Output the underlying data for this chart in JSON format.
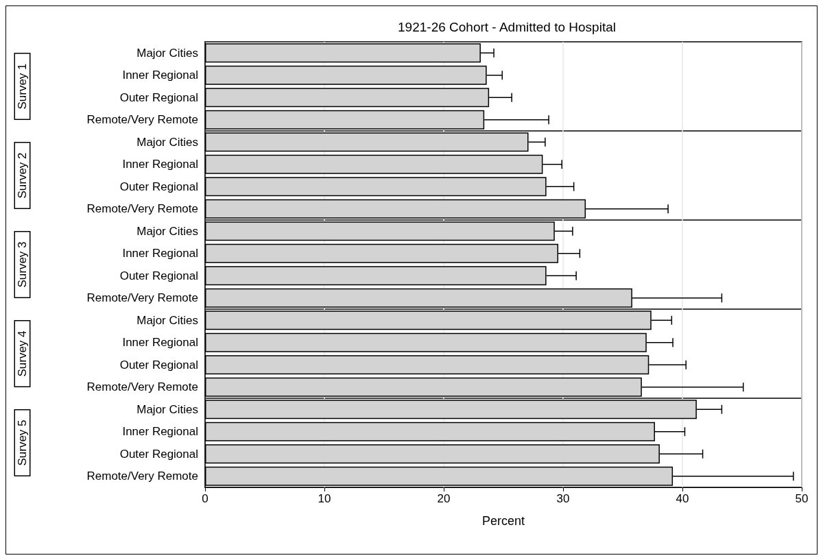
{
  "chart_data": [
    {
      "type": "bar",
      "orientation": "horizontal",
      "title": "1921-26 Cohort - Admitted to Hospital",
      "ylabel": "Survey 1",
      "categories": [
        "Major Cities",
        "Inner Regional",
        "Outer Regional",
        "Remote/Very Remote"
      ],
      "color": "#d3d3d3",
      "values": [
        23.1,
        23.6,
        23.8,
        23.4
      ],
      "errors": [
        [
          23.1,
          24.2
        ],
        [
          23.6,
          24.9
        ],
        [
          23.8,
          25.7
        ],
        [
          23.4,
          28.8
        ]
      ],
      "xlim": [
        0,
        50
      ],
      "xticks": [
        0,
        10,
        20,
        30,
        40,
        50
      ],
      "grid": "x",
      "tick_labels": "y"
    },
    {
      "type": "bar",
      "orientation": "horizontal",
      "ylabel": "Survey 2",
      "categories": [
        "Major Cities",
        "Inner Regional",
        "Outer Regional",
        "Remote/Very Remote"
      ],
      "color": "#d3d3d3",
      "values": [
        27.1,
        28.3,
        28.6,
        31.9
      ],
      "errors": [
        [
          27.1,
          28.5
        ],
        [
          28.3,
          29.9
        ],
        [
          28.6,
          30.9
        ],
        [
          31.9,
          38.8
        ]
      ],
      "xlim": [
        0,
        50
      ],
      "xticks": [
        0,
        10,
        20,
        30,
        40,
        50
      ],
      "grid": "x",
      "tick_labels": "y"
    },
    {
      "type": "bar",
      "orientation": "horizontal",
      "ylabel": "Survey 3",
      "categories": [
        "Major Cities",
        "Inner Regional",
        "Outer Regional",
        "Remote/Very Remote"
      ],
      "color": "#d3d3d3",
      "values": [
        29.3,
        29.6,
        28.6,
        35.8
      ],
      "errors": [
        [
          29.3,
          30.8
        ],
        [
          29.6,
          31.4
        ],
        [
          28.6,
          31.1
        ],
        [
          35.8,
          43.3
        ]
      ],
      "xlim": [
        0,
        50
      ],
      "xticks": [
        0,
        10,
        20,
        30,
        40,
        50
      ],
      "grid": "x",
      "tick_labels": "y"
    },
    {
      "type": "bar",
      "orientation": "horizontal",
      "ylabel": "Survey 4",
      "categories": [
        "Major Cities",
        "Inner Regional",
        "Outer Regional",
        "Remote/Very Remote"
      ],
      "color": "#d3d3d3",
      "values": [
        37.4,
        37.0,
        37.2,
        36.6
      ],
      "errors": [
        [
          37.4,
          39.1
        ],
        [
          37.0,
          39.2
        ],
        [
          37.2,
          40.3
        ],
        [
          36.6,
          45.1
        ]
      ],
      "xlim": [
        0,
        50
      ],
      "xticks": [
        0,
        10,
        20,
        30,
        40,
        50
      ],
      "grid": "x",
      "tick_labels": "y"
    },
    {
      "type": "bar",
      "orientation": "horizontal",
      "ylabel": "Survey 5",
      "xlabel": "Percent",
      "categories": [
        "Major Cities",
        "Inner Regional",
        "Outer Regional",
        "Remote/Very Remote"
      ],
      "color": "#d3d3d3",
      "values": [
        41.2,
        37.7,
        38.1,
        39.2
      ],
      "errors": [
        [
          41.2,
          43.3
        ],
        [
          37.7,
          40.2
        ],
        [
          38.1,
          41.7
        ],
        [
          39.2,
          49.3
        ]
      ],
      "xlim": [
        0,
        50
      ],
      "xticks": [
        0,
        10,
        20,
        30,
        40,
        50
      ],
      "grid": "x"
    }
  ]
}
